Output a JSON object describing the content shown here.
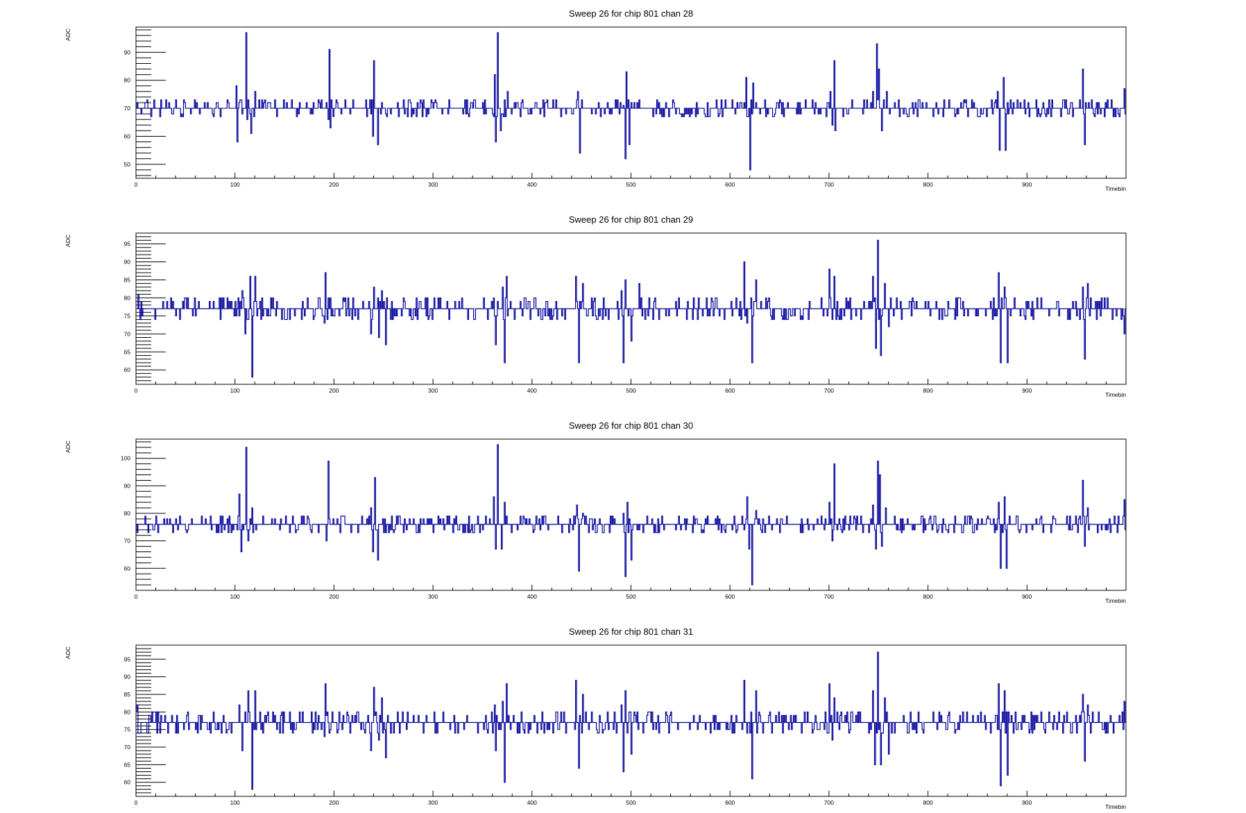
{
  "chart_data": [
    {
      "type": "line",
      "title": "Sweep 26 for chip 801 chan 28",
      "xlabel": "Timebin",
      "ylabel": "ADC",
      "xlim": [
        0,
        1000
      ],
      "ylim": [
        45,
        99
      ],
      "xticks": [
        0,
        100,
        200,
        300,
        400,
        500,
        600,
        700,
        800,
        900
      ],
      "yticks": [
        50,
        60,
        70,
        80,
        90
      ],
      "baseline": 70,
      "step": 3,
      "series": [
        {
          "color": "#000099",
          "spikes": [
            [
              101,
              78
            ],
            [
              102,
              58
            ],
            [
              111,
              97
            ],
            [
              112,
              66
            ],
            [
              116,
              61
            ],
            [
              120,
              76
            ],
            [
              194,
              66
            ],
            [
              195,
              91
            ],
            [
              196,
              63
            ],
            [
              238,
              73
            ],
            [
              239,
              60
            ],
            [
              240,
              87
            ],
            [
              244,
              57
            ],
            [
              362,
              82
            ],
            [
              363,
              58
            ],
            [
              365,
              97
            ],
            [
              368,
              62
            ],
            [
              375,
              76
            ],
            [
              446,
              76
            ],
            [
              448,
              54
            ],
            [
              451,
              70
            ],
            [
              492,
              71
            ],
            [
              494,
              52
            ],
            [
              495,
              83
            ],
            [
              498,
              57
            ],
            [
              616,
              81
            ],
            [
              618,
              67
            ],
            [
              620,
              48
            ],
            [
              623,
              79
            ],
            [
              701,
              76
            ],
            [
              703,
              64
            ],
            [
              705,
              87
            ],
            [
              706,
              62
            ],
            [
              744,
              76
            ],
            [
              748,
              93
            ],
            [
              750,
              84
            ],
            [
              753,
              62
            ],
            [
              758,
              76
            ],
            [
              870,
              76
            ],
            [
              872,
              55
            ],
            [
              876,
              81
            ],
            [
              878,
              55
            ],
            [
              956,
              84
            ],
            [
              958,
              57
            ],
            [
              962,
              72
            ],
            [
              998,
              77
            ]
          ]
        }
      ]
    },
    {
      "type": "line",
      "title": "Sweep 26 for chip 801 chan 29",
      "xlabel": "Timebin",
      "ylabel": "ADC",
      "xlim": [
        0,
        1000
      ],
      "ylim": [
        56,
        98
      ],
      "xticks": [
        0,
        100,
        200,
        300,
        400,
        500,
        600,
        700,
        800,
        900
      ],
      "yticks": [
        60,
        65,
        70,
        75,
        80,
        85,
        90,
        95
      ],
      "baseline": 77,
      "step": 3,
      "series": [
        {
          "color": "#000099",
          "spikes": [
            [
              2,
              81
            ],
            [
              4,
              74
            ],
            [
              107,
              82
            ],
            [
              110,
              70
            ],
            [
              115,
              86
            ],
            [
              117,
              58
            ],
            [
              120,
              86
            ],
            [
              190,
              73
            ],
            [
              191,
              87
            ],
            [
              237,
              70
            ],
            [
              240,
              83
            ],
            [
              245,
              69
            ],
            [
              248,
              82
            ],
            [
              252,
              67
            ],
            [
              361,
              80
            ],
            [
              363,
              67
            ],
            [
              370,
              83
            ],
            [
              372,
              62
            ],
            [
              374,
              86
            ],
            [
              444,
              86
            ],
            [
              447,
              62
            ],
            [
              451,
              84
            ],
            [
              490,
              82
            ],
            [
              492,
              62
            ],
            [
              494,
              85
            ],
            [
              500,
              68
            ],
            [
              508,
              84
            ],
            [
              614,
              90
            ],
            [
              617,
              73
            ],
            [
              622,
              62
            ],
            [
              626,
              85
            ],
            [
              700,
              88
            ],
            [
              703,
              74
            ],
            [
              705,
              86
            ],
            [
              744,
              86
            ],
            [
              747,
              66
            ],
            [
              749,
              96
            ],
            [
              752,
              64
            ],
            [
              756,
              84
            ],
            [
              760,
              72
            ],
            [
              871,
              87
            ],
            [
              873,
              62
            ],
            [
              877,
              83
            ],
            [
              880,
              62
            ],
            [
              956,
              83
            ],
            [
              958,
              63
            ],
            [
              961,
              84
            ],
            [
              998,
              70
            ]
          ]
        }
      ]
    },
    {
      "type": "line",
      "title": "Sweep 26 for chip 801 chan 30",
      "xlabel": "Timebin",
      "ylabel": "ADC",
      "xlim": [
        0,
        1000
      ],
      "ylim": [
        52,
        107
      ],
      "xticks": [
        0,
        100,
        200,
        300,
        400,
        500,
        600,
        700,
        800,
        900
      ],
      "yticks": [
        60,
        70,
        80,
        90,
        100
      ],
      "baseline": 76,
      "step": 3,
      "series": [
        {
          "color": "#000099",
          "spikes": [
            [
              1,
              73
            ],
            [
              104,
              87
            ],
            [
              106,
              66
            ],
            [
              111,
              104
            ],
            [
              113,
              70
            ],
            [
              117,
              82
            ],
            [
              192,
              70
            ],
            [
              194,
              99
            ],
            [
              237,
              82
            ],
            [
              239,
              66
            ],
            [
              241,
              93
            ],
            [
              244,
              63
            ],
            [
              361,
              86
            ],
            [
              363,
              67
            ],
            [
              365,
              105
            ],
            [
              369,
              67
            ],
            [
              372,
              84
            ],
            [
              445,
              83
            ],
            [
              447,
              59
            ],
            [
              451,
              80
            ],
            [
              492,
              80
            ],
            [
              494,
              57
            ],
            [
              496,
              84
            ],
            [
              500,
              63
            ],
            [
              617,
              86
            ],
            [
              619,
              67
            ],
            [
              622,
              54
            ],
            [
              626,
              81
            ],
            [
              700,
              84
            ],
            [
              703,
              70
            ],
            [
              705,
              98
            ],
            [
              744,
              83
            ],
            [
              747,
              67
            ],
            [
              749,
              99
            ],
            [
              751,
              94
            ],
            [
              753,
              68
            ],
            [
              757,
              82
            ],
            [
              871,
              84
            ],
            [
              873,
              60
            ],
            [
              877,
              86
            ],
            [
              879,
              60
            ],
            [
              956,
              92
            ],
            [
              958,
              68
            ],
            [
              961,
              82
            ],
            [
              998,
              85
            ]
          ]
        }
      ]
    },
    {
      "type": "line",
      "title": "Sweep 26 for chip 801 chan 31",
      "xlabel": "Timebin",
      "ylabel": "ADC",
      "xlim": [
        0,
        1000
      ],
      "ylim": [
        56,
        99
      ],
      "xticks": [
        0,
        100,
        200,
        300,
        400,
        500,
        600,
        700,
        800,
        900
      ],
      "yticks": [
        60,
        65,
        70,
        75,
        80,
        85,
        90,
        95
      ],
      "baseline": 77,
      "step": 3,
      "series": [
        {
          "color": "#000099",
          "spikes": [
            [
              1,
              82
            ],
            [
              3,
              74
            ],
            [
              104,
              82
            ],
            [
              107,
              69
            ],
            [
              113,
              86
            ],
            [
              117,
              58
            ],
            [
              120,
              86
            ],
            [
              190,
              73
            ],
            [
              191,
              88
            ],
            [
              237,
              69
            ],
            [
              240,
              87
            ],
            [
              245,
              72
            ],
            [
              248,
              84
            ],
            [
              252,
              67
            ],
            [
              362,
              82
            ],
            [
              363,
              69
            ],
            [
              370,
              83
            ],
            [
              372,
              60
            ],
            [
              374,
              88
            ],
            [
              444,
              89
            ],
            [
              447,
              64
            ],
            [
              451,
              85
            ],
            [
              490,
              82
            ],
            [
              492,
              63
            ],
            [
              494,
              86
            ],
            [
              500,
              68
            ],
            [
              614,
              89
            ],
            [
              617,
              74
            ],
            [
              622,
              61
            ],
            [
              626,
              86
            ],
            [
              700,
              88
            ],
            [
              703,
              72
            ],
            [
              705,
              84
            ],
            [
              744,
              86
            ],
            [
              746,
              65
            ],
            [
              749,
              97
            ],
            [
              752,
              65
            ],
            [
              756,
              84
            ],
            [
              760,
              68
            ],
            [
              871,
              88
            ],
            [
              873,
              59
            ],
            [
              877,
              86
            ],
            [
              880,
              62
            ],
            [
              956,
              85
            ],
            [
              958,
              66
            ],
            [
              961,
              82
            ],
            [
              998,
              83
            ]
          ]
        }
      ]
    }
  ]
}
